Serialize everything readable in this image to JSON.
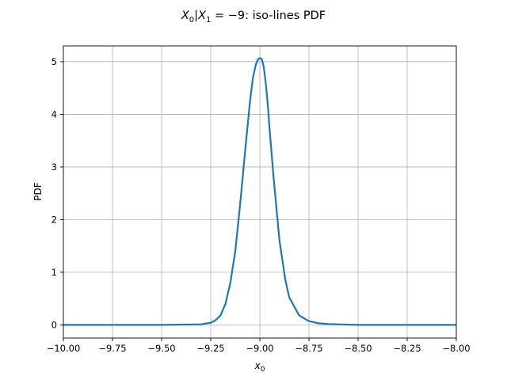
{
  "chart_data": {
    "type": "line",
    "title": {
      "main": "X",
      "sub0": "0",
      "mid": "|X",
      "sub1": "1",
      "rest": " = −9: iso-lines PDF"
    },
    "xlabel": {
      "main": "x",
      "sub": "0"
    },
    "ylabel": "PDF",
    "xlim": [
      -10.0,
      -8.0
    ],
    "ylim": [
      -0.25,
      5.3
    ],
    "xticks": [
      -10.0,
      -9.75,
      -9.5,
      -9.25,
      -9.0,
      -8.75,
      -8.5,
      -8.25,
      -8.0
    ],
    "xtick_labels": [
      "−10.00",
      "−9.75",
      "−9.50",
      "−9.25",
      "−9.00",
      "−8.75",
      "−8.50",
      "−8.25",
      "−8.00"
    ],
    "yticks": [
      0,
      1,
      2,
      3,
      4,
      5
    ],
    "ytick_labels": [
      "0",
      "1",
      "2",
      "3",
      "4",
      "5"
    ],
    "grid": true,
    "line_color": "#1f77b4",
    "series": [
      {
        "x": [
          -10.0,
          -9.5,
          -9.3,
          -9.25,
          -9.225,
          -9.2,
          -9.175,
          -9.15,
          -9.125,
          -9.1,
          -9.075,
          -9.05,
          -9.035,
          -9.02,
          -9.01,
          -9.0,
          -8.99,
          -8.98,
          -8.97,
          -8.96,
          -8.95,
          -8.93,
          -8.9,
          -8.87,
          -8.85,
          -8.8,
          -8.75,
          -8.7,
          -8.65,
          -8.6,
          -8.5,
          -8.3,
          -8.0
        ],
        "y": [
          0.0,
          0.0,
          0.01,
          0.04,
          0.09,
          0.18,
          0.4,
          0.8,
          1.4,
          2.3,
          3.3,
          4.25,
          4.7,
          4.95,
          5.04,
          5.07,
          5.05,
          4.9,
          4.6,
          4.2,
          3.7,
          2.8,
          1.6,
          0.85,
          0.52,
          0.18,
          0.07,
          0.03,
          0.015,
          0.01,
          0.0,
          0.0,
          0.0
        ]
      }
    ]
  }
}
